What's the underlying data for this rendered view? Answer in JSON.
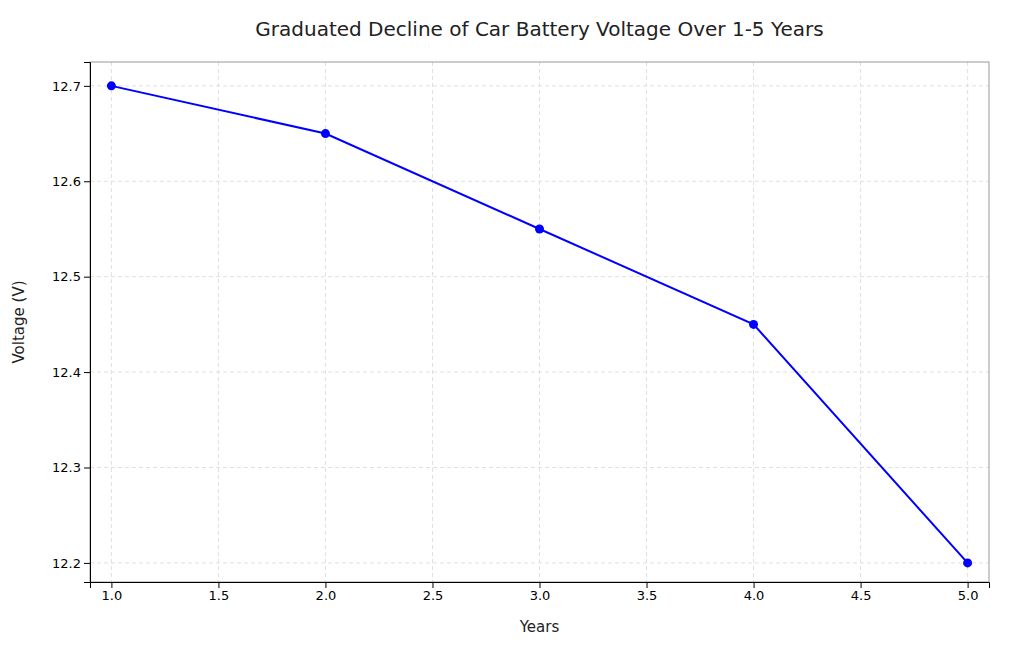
{
  "chart_data": {
    "type": "line",
    "title": "Graduated Decline of Car Battery Voltage Over 1-5 Years",
    "xlabel": "Years",
    "ylabel": "Voltage (V)",
    "x": [
      1,
      2,
      3,
      4,
      5
    ],
    "values": [
      12.7,
      12.65,
      12.55,
      12.45,
      12.2
    ],
    "color": "blue",
    "marker": "circle",
    "line_style": "solid",
    "xlim": [
      0.9,
      5.1
    ],
    "ylim": [
      12.18,
      12.725
    ],
    "xticks": [
      {
        "value": 1.0,
        "label": "1.0"
      },
      1.5,
      {
        "value": 2.0,
        "label": "2.0"
      },
      2.5,
      {
        "value": 3.0,
        "label": "3.0"
      },
      3.5,
      {
        "value": 4.0,
        "label": "4.0"
      },
      4.5,
      {
        "value": 5.0,
        "label": "5.0"
      }
    ],
    "yticks": [
      12.2,
      12.3,
      12.4,
      12.5,
      12.6,
      12.7
    ],
    "grid": true
  }
}
